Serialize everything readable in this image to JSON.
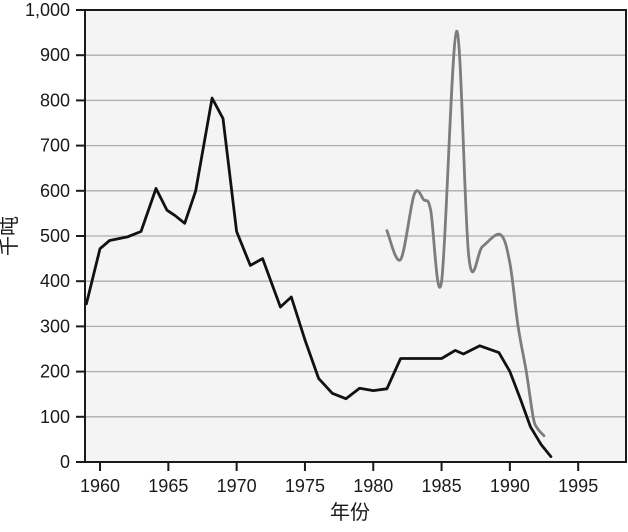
{
  "chart_data": {
    "type": "line",
    "title": "",
    "xlabel": "年份",
    "ylabel": "千吨",
    "xlim": [
      1958.9,
      1998.5
    ],
    "ylim": [
      0,
      1000
    ],
    "grid": "horizontal",
    "legend": "none",
    "x_ticks": {
      "values": [
        1960,
        1965,
        1970,
        1975,
        1980,
        1985,
        1990,
        1995
      ],
      "labels": [
        "1960",
        "1965",
        "1970",
        "1975",
        "1980",
        "1985",
        "1990",
        "1995"
      ]
    },
    "y_ticks": {
      "values": [
        0,
        100,
        200,
        300,
        400,
        500,
        600,
        700,
        800,
        900,
        1000
      ],
      "labels": [
        "0",
        "100",
        "200",
        "300",
        "400",
        "500",
        "600",
        "700",
        "800",
        "900",
        "1,000"
      ]
    },
    "series": [
      {
        "id": "black-line",
        "color": "#111111",
        "stroke_width": 2.8,
        "smooth": false,
        "points": [
          [
            1959.0,
            350
          ],
          [
            1960.0,
            472
          ],
          [
            1960.7,
            490
          ],
          [
            1962.0,
            498
          ],
          [
            1963.0,
            510
          ],
          [
            1964.1,
            605
          ],
          [
            1964.9,
            557
          ],
          [
            1965.5,
            545
          ],
          [
            1966.2,
            528
          ],
          [
            1967.0,
            600
          ],
          [
            1968.2,
            805
          ],
          [
            1969.0,
            760
          ],
          [
            1970.0,
            510
          ],
          [
            1971.0,
            435
          ],
          [
            1971.9,
            450
          ],
          [
            1973.2,
            343
          ],
          [
            1974.0,
            365
          ],
          [
            1975.0,
            270
          ],
          [
            1976.0,
            185
          ],
          [
            1977.0,
            152
          ],
          [
            1978.0,
            140
          ],
          [
            1979.0,
            163
          ],
          [
            1980.0,
            158
          ],
          [
            1981.0,
            162
          ],
          [
            1982.0,
            229
          ],
          [
            1985.0,
            229
          ],
          [
            1986.0,
            247
          ],
          [
            1986.6,
            239
          ],
          [
            1987.8,
            257
          ],
          [
            1989.2,
            242
          ],
          [
            1990.0,
            200
          ],
          [
            1990.8,
            137
          ],
          [
            1991.5,
            78
          ],
          [
            1992.3,
            38
          ],
          [
            1993.0,
            12
          ]
        ]
      },
      {
        "id": "gray-line",
        "color": "#7d7d7d",
        "stroke_width": 2.8,
        "smooth": true,
        "points": [
          [
            1981.0,
            512
          ],
          [
            1982.0,
            448
          ],
          [
            1983.0,
            592
          ],
          [
            1983.7,
            580
          ],
          [
            1984.2,
            558
          ],
          [
            1985.0,
            400
          ],
          [
            1986.1,
            953
          ],
          [
            1987.0,
            452
          ],
          [
            1988.0,
            477
          ],
          [
            1989.3,
            503
          ],
          [
            1990.0,
            440
          ],
          [
            1990.6,
            300
          ],
          [
            1991.2,
            200
          ],
          [
            1991.7,
            100
          ],
          [
            1992.0,
            75
          ],
          [
            1992.5,
            58
          ]
        ]
      }
    ]
  },
  "colors": {
    "page_bg": "#ffffff",
    "plot_bg": "#f4f4f4",
    "grid": "#adadad",
    "axis": "#1a1a1a",
    "text": "#1a1a1a"
  }
}
